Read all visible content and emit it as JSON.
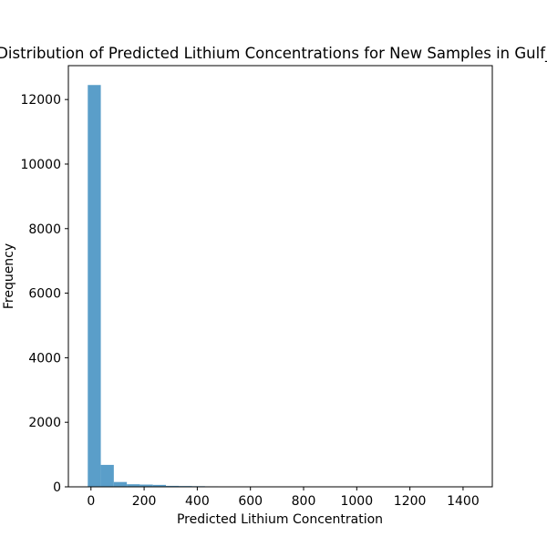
{
  "chart_data": {
    "type": "histogram",
    "title": "Distribution of Predicted Lithium Concentrations for New Samples in Gulf_C",
    "xlabel": "Predicted Lithium Concentration",
    "ylabel": "Frequency",
    "xlim": [
      -85,
      1510
    ],
    "ylim": [
      0,
      13050
    ],
    "xticks": [
      0,
      200,
      400,
      600,
      800,
      1000,
      1200,
      1400
    ],
    "xtick_labels": [
      "0",
      "200",
      "400",
      "600",
      "800",
      "1000",
      "1200",
      "1400"
    ],
    "yticks": [
      0,
      2000,
      4000,
      6000,
      8000,
      10000,
      12000
    ],
    "ytick_labels": [
      "0",
      "2000",
      "4000",
      "6000",
      "8000",
      "10000",
      "12000"
    ],
    "bin_start": -12,
    "bin_width": 49,
    "values": [
      12450,
      680,
      150,
      80,
      70,
      60,
      30,
      25,
      20,
      15,
      12,
      8,
      5,
      4,
      3,
      2,
      2,
      1,
      1,
      1,
      1,
      0,
      0,
      0,
      0,
      0,
      0,
      0,
      0,
      1
    ],
    "bar_color": "#5a9ec9",
    "grid": false
  }
}
